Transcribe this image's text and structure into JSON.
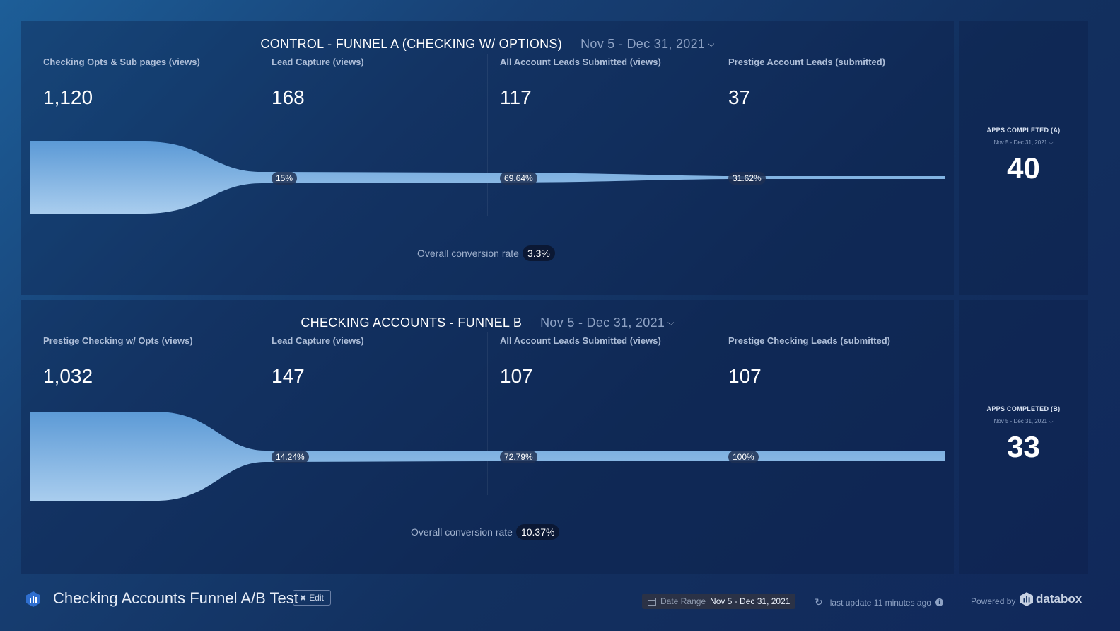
{
  "funnel_a": {
    "title": "CONTROL - FUNNEL A (CHECKING W/ OPTIONS)",
    "date": "Nov 5 - Dec 31, 2021",
    "stages": [
      {
        "label": "Checking Opts & Sub pages (views)",
        "value": "1,120"
      },
      {
        "label": "Lead Capture (views)",
        "value": "168"
      },
      {
        "label": "All Account Leads Submitted (views)",
        "value": "117"
      },
      {
        "label": "Prestige Account Leads (submitted)",
        "value": "37"
      }
    ],
    "rates": [
      "15%",
      "69.64%",
      "31.62%"
    ],
    "overall_label": "Overall conversion rate",
    "overall_value": "3.3%"
  },
  "funnel_b": {
    "title": "CHECKING ACCOUNTS - FUNNEL B",
    "date": "Nov 5 - Dec 31, 2021",
    "stages": [
      {
        "label": "Prestige Checking w/ Opts (views)",
        "value": "1,032"
      },
      {
        "label": "Lead Capture (views)",
        "value": "147"
      },
      {
        "label": "All Account Leads Submitted (views)",
        "value": "107"
      },
      {
        "label": "Prestige Checking Leads (submitted)",
        "value": "107"
      }
    ],
    "rates": [
      "14.24%",
      "72.79%",
      "100%"
    ],
    "overall_label": "Overall conversion rate",
    "overall_value": "10.37%"
  },
  "side_a": {
    "title": "APPS COMPLETED (A)",
    "date": "Nov 5 - Dec 31, 2021",
    "value": "40"
  },
  "side_b": {
    "title": "APPS COMPLETED (B)",
    "date": "Nov 5 - Dec 31, 2021",
    "value": "33"
  },
  "footer": {
    "dashboard_title": "Checking Accounts Funnel A/B Test",
    "edit_label": "Edit",
    "date_range_label": "Date Range",
    "date_range_value": "Nov 5 - Dec 31, 2021",
    "last_update": "last update 11 minutes ago",
    "powered_by": "Powered by",
    "brand": "databox"
  },
  "colors": {
    "funnel_top": "#5c9ad6",
    "funnel_bottom": "#a9cdee"
  }
}
